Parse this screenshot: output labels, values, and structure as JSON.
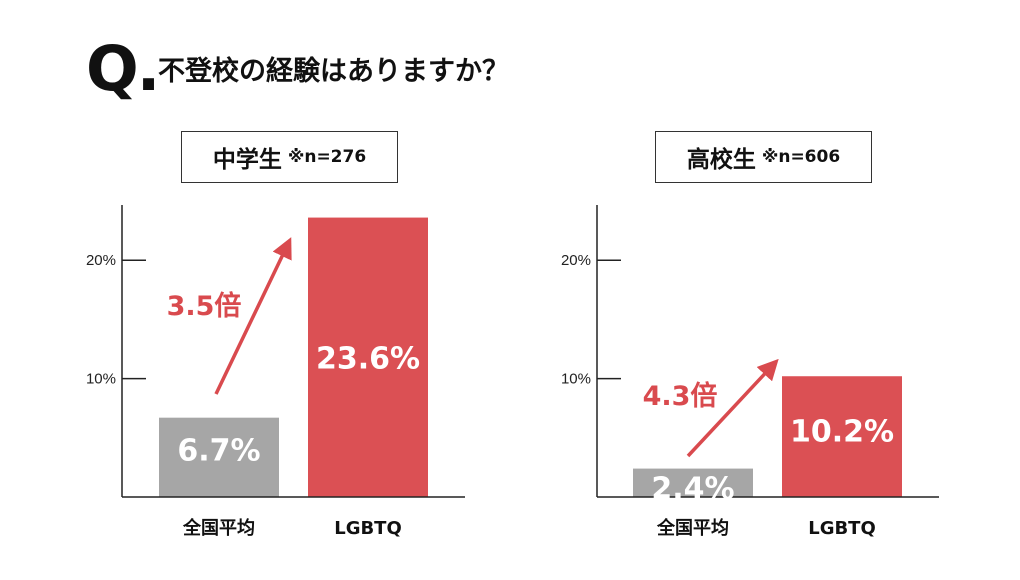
{
  "header": {
    "q_mark": "Q.",
    "question": "不登校の経験はありますか？"
  },
  "colors": {
    "average_bar": "#a6a6a6",
    "lgbtq_bar": "#db5054",
    "accent_text": "#d94a4e",
    "axis": "#222222"
  },
  "chart_data": [
    {
      "type": "bar",
      "panel_label": "中学生",
      "sample_note": "※n=276",
      "categories": [
        "全国平均",
        "LGBTQ"
      ],
      "values": [
        6.7,
        23.6
      ],
      "data_labels": [
        "6.7%",
        "23.6%"
      ],
      "yticks": [
        10,
        20
      ],
      "ytick_labels": [
        "10%",
        "20%"
      ],
      "ylim": [
        0,
        25
      ],
      "grid": false,
      "multiplier_label": "3.5倍"
    },
    {
      "type": "bar",
      "panel_label": "高校生",
      "sample_note": "※n=606",
      "categories": [
        "全国平均",
        "LGBTQ"
      ],
      "values": [
        2.4,
        10.2
      ],
      "data_labels": [
        "2.4%",
        "10.2%"
      ],
      "yticks": [
        10,
        20
      ],
      "ytick_labels": [
        "10%",
        "20%"
      ],
      "ylim": [
        0,
        25
      ],
      "grid": false,
      "multiplier_label": "4.3倍"
    }
  ]
}
